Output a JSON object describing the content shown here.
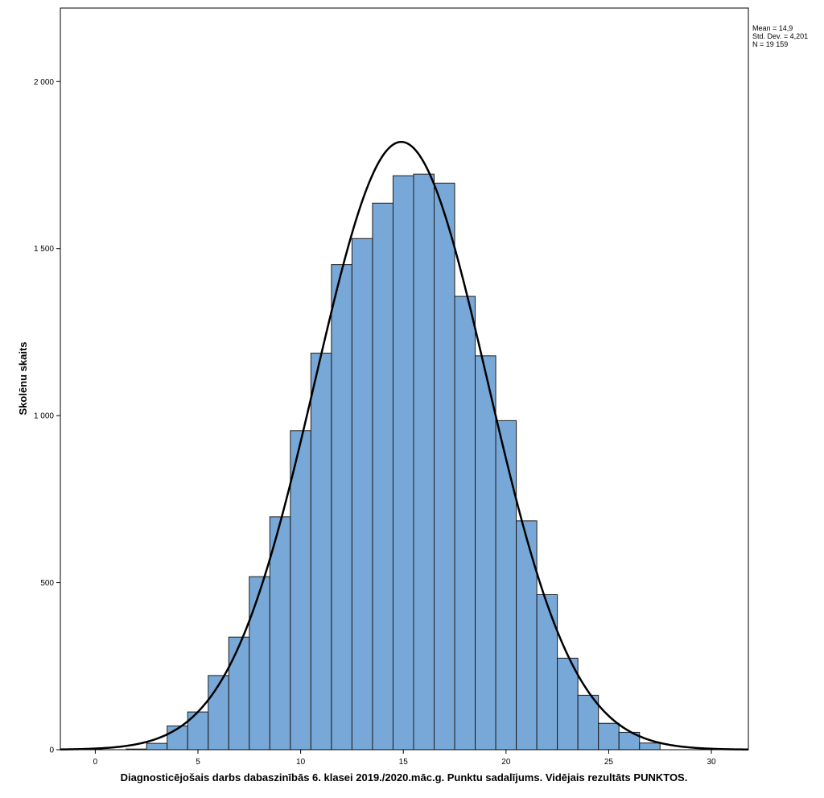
{
  "chart_data": {
    "type": "bar",
    "subtype": "histogram",
    "title": "",
    "xlabel": "Diagnosticējošais darbs dabaszinībās 6. klasei 2019./2020.māc.g. Punktu sadalījums. Vidējais rezultāts PUNKTOS.",
    "ylabel": "Skolēnu skaits",
    "xlim": [
      -1.7,
      31.8
    ],
    "ylim": [
      0,
      2220
    ],
    "xticks": [
      0,
      5,
      10,
      15,
      20,
      25,
      30
    ],
    "xtick_labels": [
      "0",
      "5",
      "10",
      "15",
      "20",
      "25",
      "30"
    ],
    "yticks": [
      0,
      500,
      1000,
      1500,
      2000
    ],
    "ytick_labels": [
      "0",
      "500",
      "1 000",
      "1 500",
      "2 000"
    ],
    "bin_width": 1,
    "bins": [
      {
        "x": 2,
        "value": 2
      },
      {
        "x": 3,
        "value": 19
      },
      {
        "x": 4,
        "value": 71
      },
      {
        "x": 5,
        "value": 113
      },
      {
        "x": 6,
        "value": 222
      },
      {
        "x": 7,
        "value": 337
      },
      {
        "x": 8,
        "value": 518
      },
      {
        "x": 9,
        "value": 697
      },
      {
        "x": 10,
        "value": 955
      },
      {
        "x": 11,
        "value": 1187
      },
      {
        "x": 12,
        "value": 1452
      },
      {
        "x": 13,
        "value": 1530
      },
      {
        "x": 14,
        "value": 1636
      },
      {
        "x": 15,
        "value": 1718
      },
      {
        "x": 16,
        "value": 1723
      },
      {
        "x": 17,
        "value": 1696
      },
      {
        "x": 18,
        "value": 1357
      },
      {
        "x": 19,
        "value": 1179
      },
      {
        "x": 20,
        "value": 985
      },
      {
        "x": 21,
        "value": 685
      },
      {
        "x": 22,
        "value": 464
      },
      {
        "x": 23,
        "value": 274
      },
      {
        "x": 24,
        "value": 163
      },
      {
        "x": 25,
        "value": 79
      },
      {
        "x": 26,
        "value": 52
      },
      {
        "x": 27,
        "value": 20
      }
    ],
    "normal_curve": {
      "mean": 14.9,
      "std_dev": 4.201,
      "n": 19159
    },
    "stats_box": [
      "Mean = 14,9",
      "Std. Dev. = 4,201",
      "N = 19 159"
    ],
    "legend_position": "top-right",
    "grid": false,
    "colors": {
      "bar_fill": "#78a8d7",
      "bar_edge": "#1c1c1c",
      "curve": "#000000"
    }
  }
}
